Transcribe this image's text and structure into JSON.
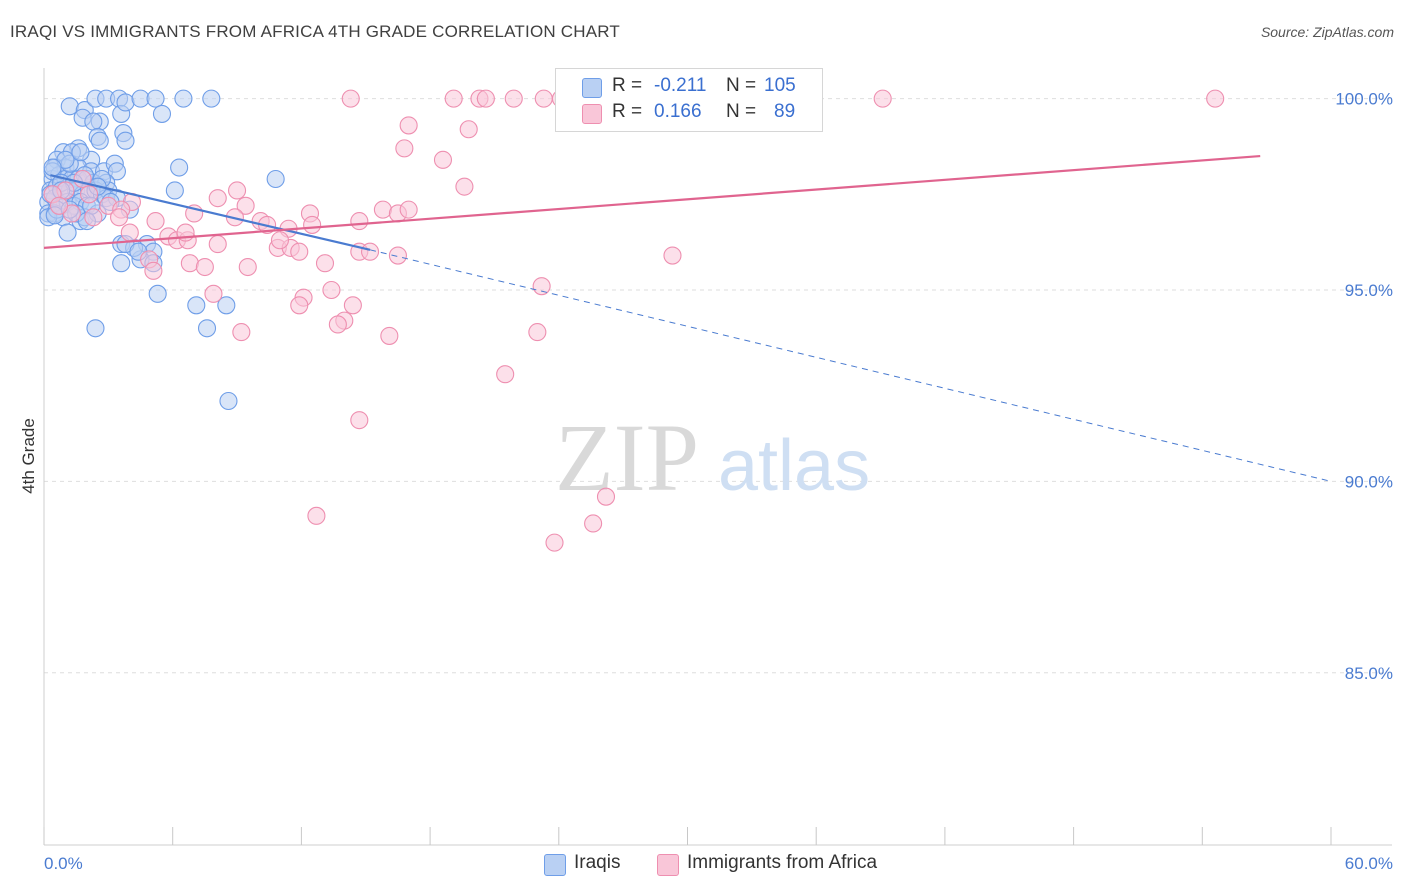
{
  "title": "IRAQI VS IMMIGRANTS FROM AFRICA 4TH GRADE CORRELATION CHART",
  "source": "Source: ZipAtlas.com",
  "watermark": {
    "part1": "ZIP",
    "part2": "atlas"
  },
  "legend": {
    "rows": [
      {
        "r_label": "R =",
        "r_value": "-0.211",
        "n_label": "N =",
        "n_value": "105",
        "color": "#6f9ee8",
        "fill": "#b9d0f3"
      },
      {
        "r_label": "R =",
        "r_value": "0.166",
        "n_label": "N =",
        "n_value": "89",
        "color": "#ee8fb0",
        "fill": "#f9c6d8"
      }
    ]
  },
  "bottom_legend": [
    {
      "label": "Iraqis",
      "color": "#6f9ee8",
      "fill": "#b9d0f3"
    },
    {
      "label": "Immigrants from Africa",
      "color": "#ee8fb0",
      "fill": "#f9c6d8"
    }
  ],
  "chart_data": {
    "type": "scatter",
    "title": "IRAQI VS IMMIGRANTS FROM AFRICA 4TH GRADE CORRELATION CHART",
    "xlabel": "",
    "ylabel": "4th Grade",
    "xlim": [
      0,
      60
    ],
    "ylim": [
      80.5,
      100.8
    ],
    "x_tick_labels": [
      {
        "value": 0,
        "label": "0.0%"
      },
      {
        "value": 60,
        "label": "60.0%"
      }
    ],
    "y_tick_labels": [
      {
        "value": 100,
        "label": "100.0%"
      },
      {
        "value": 95,
        "label": "95.0%"
      },
      {
        "value": 90,
        "label": "90.0%"
      },
      {
        "value": 85,
        "label": "85.0%"
      }
    ],
    "grid": true,
    "legend_position": "top-center",
    "series": [
      {
        "name": "Iraqis",
        "color": "#4a7bd0",
        "fill": "#b9d0f3",
        "trend": {
          "x0": 0.3,
          "y0": 98.0,
          "x1": 15.2,
          "y1": 96.05,
          "dash_x1": 60,
          "dash_y1": 90.0
        },
        "points": [
          [
            1.2,
            99.8
          ],
          [
            1.9,
            99.7
          ],
          [
            2.4,
            100
          ],
          [
            2.6,
            99.4
          ],
          [
            2.9,
            100
          ],
          [
            3.5,
            100
          ],
          [
            3.6,
            99.6
          ],
          [
            3.8,
            99.9
          ],
          [
            4.5,
            100
          ],
          [
            5.2,
            100
          ],
          [
            5.5,
            99.6
          ],
          [
            6.5,
            100
          ],
          [
            7.8,
            100
          ],
          [
            1.8,
            99.5
          ],
          [
            2.3,
            99.4
          ],
          [
            2.5,
            99.0
          ],
          [
            3.7,
            99.1
          ],
          [
            3.8,
            98.9
          ],
          [
            2.6,
            98.9
          ],
          [
            1.6,
            98.7
          ],
          [
            0.9,
            98.6
          ],
          [
            1.3,
            98.6
          ],
          [
            0.6,
            98.4
          ],
          [
            2.2,
            98.4
          ],
          [
            0.5,
            98.2
          ],
          [
            1.0,
            98.2
          ],
          [
            1.6,
            98.2
          ],
          [
            2.2,
            98.1
          ],
          [
            2.8,
            98.1
          ],
          [
            3.3,
            98.3
          ],
          [
            3.4,
            98.1
          ],
          [
            6.3,
            98.2
          ],
          [
            10.8,
            97.9
          ],
          [
            0.4,
            97.9
          ],
          [
            0.7,
            98.0
          ],
          [
            1.0,
            97.9
          ],
          [
            1.3,
            97.9
          ],
          [
            1.6,
            97.9
          ],
          [
            2.0,
            97.9
          ],
          [
            2.3,
            97.8
          ],
          [
            2.6,
            97.7
          ],
          [
            2.9,
            97.8
          ],
          [
            0.3,
            97.6
          ],
          [
            0.6,
            97.7
          ],
          [
            0.9,
            97.5
          ],
          [
            1.2,
            97.6
          ],
          [
            1.5,
            97.6
          ],
          [
            1.8,
            97.5
          ],
          [
            2.1,
            97.6
          ],
          [
            2.4,
            97.6
          ],
          [
            2.7,
            97.5
          ],
          [
            3.0,
            97.6
          ],
          [
            0.2,
            97.3
          ],
          [
            0.5,
            97.4
          ],
          [
            0.8,
            97.2
          ],
          [
            1.1,
            97.3
          ],
          [
            1.4,
            97.2
          ],
          [
            1.7,
            97.3
          ],
          [
            2.0,
            97.2
          ],
          [
            2.9,
            97.4
          ],
          [
            0.2,
            97.0
          ],
          [
            0.5,
            97.0
          ],
          [
            0.9,
            96.9
          ],
          [
            1.7,
            96.8
          ],
          [
            1.9,
            96.9
          ],
          [
            2.5,
            97.0
          ],
          [
            3.4,
            97.4
          ],
          [
            4.0,
            97.1
          ],
          [
            6.1,
            97.6
          ],
          [
            0.2,
            96.9
          ],
          [
            1.1,
            96.5
          ],
          [
            3.6,
            96.2
          ],
          [
            4.8,
            96.2
          ],
          [
            5.1,
            96.0
          ],
          [
            3.6,
            95.7
          ],
          [
            4.5,
            95.8
          ],
          [
            5.1,
            95.7
          ],
          [
            5.3,
            94.9
          ],
          [
            7.1,
            94.6
          ],
          [
            8.5,
            94.6
          ],
          [
            7.6,
            94.0
          ],
          [
            2.4,
            94.0
          ],
          [
            8.6,
            92.1
          ],
          [
            4.2,
            96.1
          ],
          [
            0.4,
            98.1
          ],
          [
            1.2,
            98.3
          ],
          [
            0.8,
            97.8
          ],
          [
            1.5,
            97.0
          ],
          [
            2.2,
            97.2
          ],
          [
            0.3,
            97.5
          ],
          [
            1.9,
            98.0
          ],
          [
            0.6,
            97.1
          ],
          [
            2.7,
            97.9
          ],
          [
            1.0,
            98.4
          ],
          [
            3.1,
            97.3
          ],
          [
            0.4,
            98.2
          ],
          [
            1.4,
            97.8
          ],
          [
            2.0,
            96.8
          ],
          [
            0.8,
            97.6
          ],
          [
            1.7,
            98.6
          ],
          [
            2.5,
            97.7
          ],
          [
            0.5,
            96.95
          ],
          [
            1.2,
            97.1
          ],
          [
            3.8,
            96.2
          ],
          [
            4.4,
            96.0
          ]
        ]
      },
      {
        "name": "Immigrants from Africa",
        "color": "#e0648f",
        "fill": "#f9c6d8",
        "trend": {
          "x0": 0,
          "y0": 96.1,
          "x1": 56.7,
          "y1": 98.5
        },
        "points": [
          [
            14.3,
            100
          ],
          [
            19.1,
            100
          ],
          [
            20.3,
            100
          ],
          [
            20.6,
            100
          ],
          [
            21.9,
            100
          ],
          [
            23.3,
            100
          ],
          [
            24.1,
            100
          ],
          [
            24.6,
            100
          ],
          [
            25.0,
            100
          ],
          [
            25.9,
            100
          ],
          [
            27.7,
            100
          ],
          [
            28.1,
            100
          ],
          [
            28.5,
            100
          ],
          [
            28.9,
            100
          ],
          [
            29.3,
            100
          ],
          [
            29.6,
            100
          ],
          [
            30.1,
            100
          ],
          [
            32.4,
            100
          ],
          [
            35.8,
            100
          ],
          [
            39.1,
            100
          ],
          [
            54.6,
            100
          ],
          [
            17.0,
            99.3
          ],
          [
            19.8,
            99.2
          ],
          [
            16.8,
            98.7
          ],
          [
            18.6,
            98.4
          ],
          [
            19.6,
            97.7
          ],
          [
            9.0,
            97.6
          ],
          [
            8.1,
            97.4
          ],
          [
            4.1,
            97.3
          ],
          [
            9.4,
            97.2
          ],
          [
            3.0,
            97.2
          ],
          [
            3.6,
            97.1
          ],
          [
            15.8,
            97.1
          ],
          [
            16.5,
            97.0
          ],
          [
            17.0,
            97.1
          ],
          [
            12.4,
            97.0
          ],
          [
            7.0,
            97.0
          ],
          [
            2.3,
            96.9
          ],
          [
            3.5,
            96.9
          ],
          [
            5.2,
            96.8
          ],
          [
            8.9,
            96.9
          ],
          [
            10.1,
            96.8
          ],
          [
            14.7,
            96.8
          ],
          [
            10.4,
            96.7
          ],
          [
            11.4,
            96.6
          ],
          [
            4.0,
            96.5
          ],
          [
            5.8,
            96.4
          ],
          [
            6.2,
            96.3
          ],
          [
            6.7,
            96.3
          ],
          [
            8.1,
            96.2
          ],
          [
            10.9,
            96.1
          ],
          [
            11.5,
            96.1
          ],
          [
            11.9,
            96.0
          ],
          [
            14.7,
            96.0
          ],
          [
            15.2,
            96.0
          ],
          [
            16.5,
            95.9
          ],
          [
            29.3,
            95.9
          ],
          [
            13.1,
            95.7
          ],
          [
            4.9,
            95.8
          ],
          [
            6.8,
            95.7
          ],
          [
            7.5,
            95.6
          ],
          [
            9.5,
            95.6
          ],
          [
            5.1,
            95.5
          ],
          [
            23.2,
            95.1
          ],
          [
            13.4,
            95.0
          ],
          [
            7.9,
            94.9
          ],
          [
            12.1,
            94.8
          ],
          [
            14.4,
            94.6
          ],
          [
            11.9,
            94.6
          ],
          [
            14.0,
            94.2
          ],
          [
            13.7,
            94.1
          ],
          [
            9.2,
            93.9
          ],
          [
            16.1,
            93.8
          ],
          [
            23.0,
            93.9
          ],
          [
            21.5,
            92.8
          ],
          [
            14.7,
            91.6
          ],
          [
            26.2,
            89.6
          ],
          [
            12.7,
            89.1
          ],
          [
            25.6,
            88.9
          ],
          [
            23.8,
            88.4
          ],
          [
            1.0,
            97.6
          ],
          [
            1.8,
            97.9
          ],
          [
            0.4,
            97.5
          ],
          [
            1.3,
            97.0
          ],
          [
            2.1,
            97.5
          ],
          [
            11.0,
            96.3
          ],
          [
            6.6,
            96.5
          ],
          [
            0.7,
            97.2
          ],
          [
            12.5,
            96.7
          ]
        ]
      }
    ]
  }
}
